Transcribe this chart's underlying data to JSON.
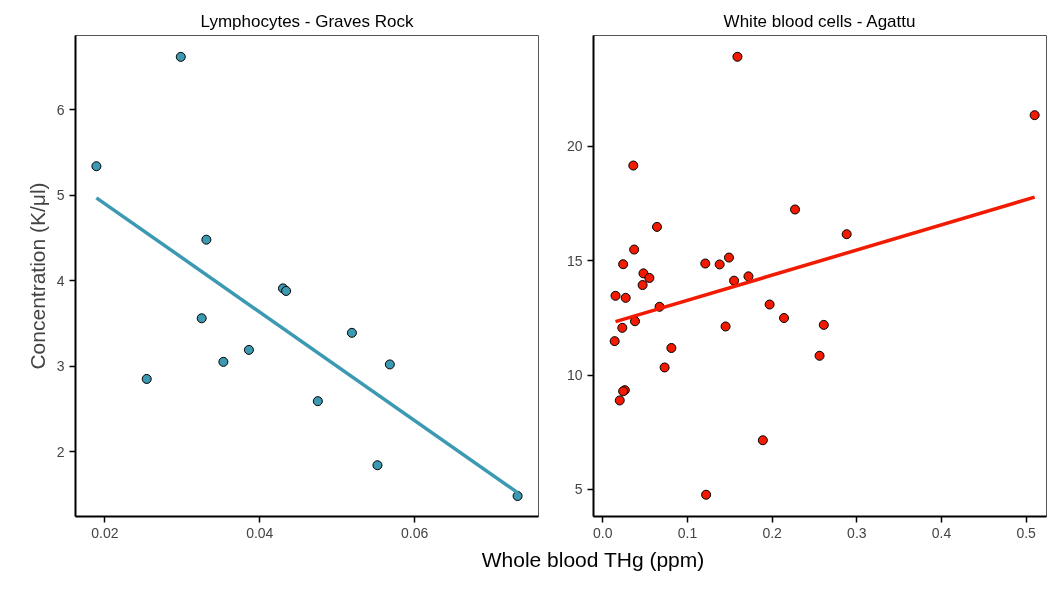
{
  "chart_data": [
    {
      "type": "scatter",
      "title": "Lymphocytes - Graves Rock",
      "ylabel": "Concentration (K/μl)",
      "xlabel": "Whole blood THg (ppm)",
      "grid": false,
      "xlim": [
        0.0162,
        0.076
      ],
      "ylim": [
        1.24,
        6.87
      ],
      "xticks": [
        0.02,
        0.04,
        0.06
      ],
      "yticks": [
        2,
        3,
        4,
        5,
        6
      ],
      "series": [
        {
          "color": "#3b9ab2",
          "marker": "circle",
          "x": [
            0.0189,
            0.0298,
            0.0254,
            0.0331,
            0.0325,
            0.0353,
            0.0386,
            0.043,
            0.0434,
            0.0519,
            0.0475,
            0.0568,
            0.0552,
            0.0733
          ],
          "values": [
            5.34,
            6.62,
            2.85,
            4.48,
            3.56,
            3.05,
            3.19,
            3.91,
            3.88,
            3.39,
            2.59,
            3.02,
            1.84,
            1.48
          ]
        },
        {
          "type": "line",
          "marker": "none",
          "color": "#3b9ab2",
          "x": [
            0.0189,
            0.0733
          ],
          "values": [
            4.97,
            1.52
          ]
        }
      ]
    },
    {
      "type": "scatter",
      "title": "White blood cells - Agattu",
      "grid": false,
      "xlim": [
        -0.011,
        0.524
      ],
      "ylim": [
        3.82,
        24.83
      ],
      "xticks": [
        {
          "value": 0,
          "label": "0.0"
        },
        0.1,
        0.2,
        0.3,
        0.4,
        0.5
      ],
      "yticks": [
        5,
        10,
        15,
        20
      ],
      "series": [
        {
          "color": "#f21a00",
          "marker": "circle",
          "x": [
            0.159,
            0.51,
            0.036,
            0.227,
            0.288,
            0.064,
            0.037,
            0.024,
            0.121,
            0.138,
            0.149,
            0.048,
            0.055,
            0.047,
            0.155,
            0.172,
            0.015,
            0.027,
            0.067,
            0.197,
            0.038,
            0.023,
            0.214,
            0.145,
            0.261,
            0.014,
            0.081,
            0.073,
            0.256,
            0.026,
            0.024,
            0.02,
            0.189,
            0.122
          ],
          "values": [
            23.9,
            21.35,
            19.15,
            17.23,
            16.15,
            16.47,
            15.48,
            14.84,
            14.87,
            14.83,
            15.13,
            14.44,
            14.24,
            13.93,
            14.12,
            14.31,
            13.46,
            13.37,
            12.98,
            13.08,
            12.35,
            12.06,
            12.49,
            12.12,
            12.19,
            11.48,
            11.18,
            10.33,
            10.84,
            9.34,
            9.29,
            8.89,
            7.15,
            4.77
          ]
        },
        {
          "type": "line",
          "marker": "none",
          "color": "#f21a00",
          "x": [
            0.015,
            0.51
          ],
          "values": [
            12.33,
            17.77
          ]
        }
      ]
    }
  ]
}
